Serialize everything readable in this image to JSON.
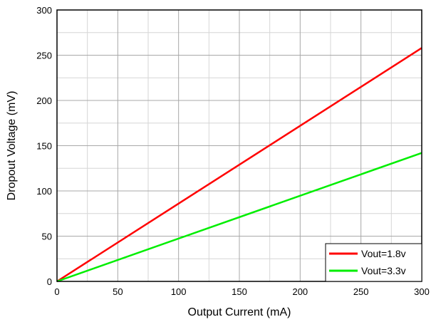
{
  "chart_data": {
    "type": "line",
    "title": "",
    "xlabel": "Output Current (mA)",
    "ylabel": "Dropout Voltage (mV)",
    "xlim": [
      0,
      300
    ],
    "ylim": [
      0,
      300
    ],
    "x_ticks": [
      0,
      50,
      100,
      150,
      200,
      250,
      300
    ],
    "y_ticks": [
      0,
      50,
      100,
      150,
      200,
      250,
      300
    ],
    "x_tick_labels": [
      "0",
      "50",
      "100",
      "150",
      "200",
      "250",
      "300"
    ],
    "y_tick_labels": [
      "0",
      "50",
      "100",
      "150",
      "200",
      "250",
      "300"
    ],
    "grid": true,
    "legend_position": "bottom-right",
    "series": [
      {
        "name": "Vout=1.8v",
        "color": "#ff0000",
        "x": [
          0,
          300
        ],
        "y": [
          0,
          258
        ]
      },
      {
        "name": "Vout=3.3v",
        "color": "#00ee00",
        "x": [
          0,
          300
        ],
        "y": [
          0,
          142
        ]
      }
    ]
  }
}
